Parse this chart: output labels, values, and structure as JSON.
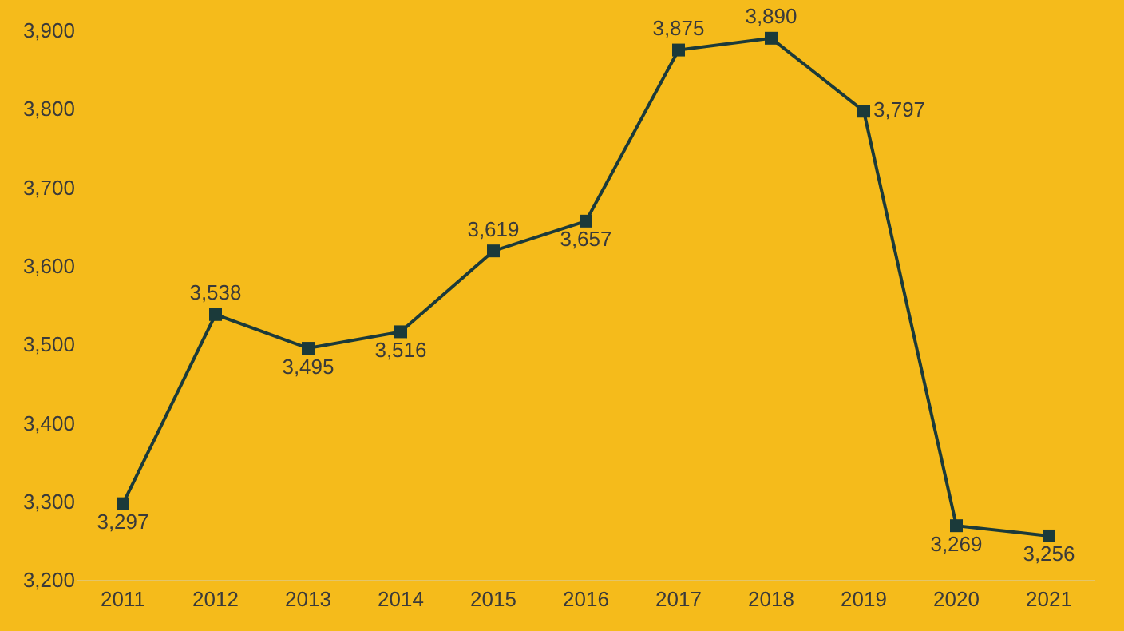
{
  "chart_data": {
    "type": "line",
    "categories": [
      "2011",
      "2012",
      "2013",
      "2014",
      "2015",
      "2016",
      "2017",
      "2018",
      "2019",
      "2020",
      "2021"
    ],
    "series": [
      {
        "color": "#1b3a3a",
        "values": [
          3297,
          3538,
          3495,
          3516,
          3619,
          3657,
          3875,
          3890,
          3797,
          3269,
          3256
        ],
        "value_labels": [
          "3,297",
          "3,538",
          "3,495",
          "3,516",
          "3,619",
          "3,657",
          "3,875",
          "3,890",
          "3,797",
          "3,269",
          "3,256"
        ]
      }
    ],
    "ylim": [
      3200,
      3900
    ],
    "yticks": [
      {
        "value": 3200,
        "label": "3,200"
      },
      {
        "value": 3300,
        "label": "3,300"
      },
      {
        "value": 3400,
        "label": "3,400"
      },
      {
        "value": 3500,
        "label": "3,500"
      },
      {
        "value": 3600,
        "label": "3,600"
      },
      {
        "value": 3700,
        "label": "3,700"
      },
      {
        "value": 3800,
        "label": "3,800"
      },
      {
        "value": 3900,
        "label": "3,900"
      }
    ],
    "grid": false,
    "legend": false,
    "marker": "square",
    "line_style": "solid"
  }
}
